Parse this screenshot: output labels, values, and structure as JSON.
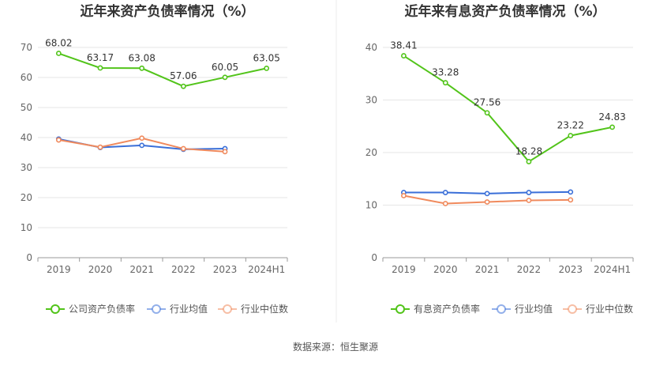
{
  "source": "数据来源：恒生聚源",
  "chart_data": [
    {
      "type": "line",
      "title": "近年来资产负债率情况（%）",
      "categories": [
        "2019",
        "2020",
        "2021",
        "2022",
        "2023",
        "2024H1"
      ],
      "ylim": [
        0,
        70
      ],
      "yticks": [
        0,
        10,
        20,
        30,
        40,
        50,
        60,
        70
      ],
      "grid": true,
      "legend_position": "bottom",
      "series": [
        {
          "name": "公司资产负债率",
          "color": "#52c41a",
          "values": [
            68.02,
            63.17,
            63.08,
            57.06,
            60.05,
            63.05
          ],
          "labels": [
            "68.02",
            "63.17",
            "63.08",
            "57.06",
            "60.05",
            "63.05"
          ]
        },
        {
          "name": "行业均值",
          "color": "#3a6fd8",
          "values": [
            39.5,
            36.7,
            37.4,
            36.1,
            36.3,
            null
          ]
        },
        {
          "name": "行业中位数",
          "color": "#f08a5d",
          "values": [
            39.2,
            36.8,
            39.8,
            36.3,
            35.3,
            null
          ]
        }
      ]
    },
    {
      "type": "line",
      "title": "近年来有息资产负债率情况（%）",
      "categories": [
        "2019",
        "2020",
        "2021",
        "2022",
        "2023",
        "2024H1"
      ],
      "ylim": [
        0,
        40
      ],
      "yticks": [
        0,
        10,
        20,
        30,
        40
      ],
      "grid": true,
      "legend_position": "bottom",
      "series": [
        {
          "name": "有息资产负债率",
          "color": "#52c41a",
          "values": [
            38.41,
            33.28,
            27.56,
            18.28,
            23.22,
            24.83
          ],
          "labels": [
            "38.41",
            "33.28",
            "27.56",
            "18.28",
            "23.22",
            "24.83"
          ]
        },
        {
          "name": "行业均值",
          "color": "#3a6fd8",
          "values": [
            12.4,
            12.4,
            12.2,
            12.4,
            12.5,
            null
          ]
        },
        {
          "name": "行业中位数",
          "color": "#f08a5d",
          "values": [
            11.8,
            10.3,
            10.6,
            10.9,
            11.0,
            null
          ]
        }
      ]
    }
  ]
}
